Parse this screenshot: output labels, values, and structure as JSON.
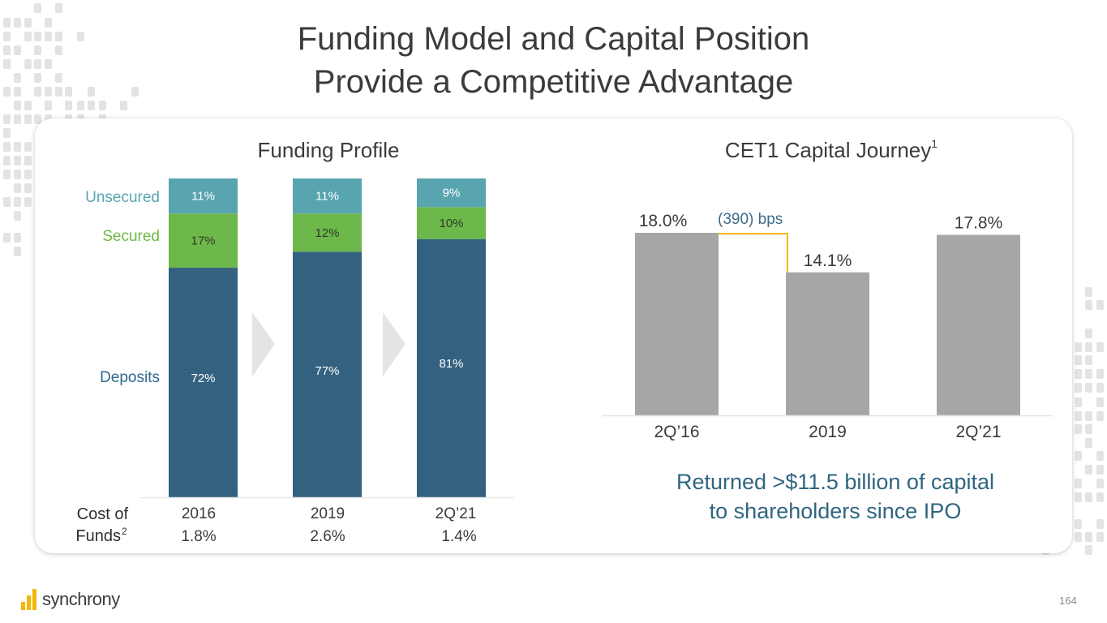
{
  "slide": {
    "title_line1": "Funding Model and Capital Position",
    "title_line2": "Provide a Competitive Advantage",
    "page_number": "164",
    "logo_text": "synchrony",
    "tagline_line1": "Returned >$11.5 billion of capital",
    "tagline_line2": "to shareholders since IPO"
  },
  "colors": {
    "deposits": "#346180",
    "secured": "#6db84a",
    "unsecured": "#58a5b0",
    "cet1_bar": "#a6a6a6",
    "connector": "#f2b705",
    "tagline": "#2f6580",
    "accent_logo": "#f2b705"
  },
  "chart_data": [
    {
      "type": "bar",
      "stacked": true,
      "title": "Funding Profile",
      "categories": [
        "2016",
        "2019",
        "2Q’21"
      ],
      "series": [
        {
          "name": "Deposits",
          "values": [
            72,
            77,
            81
          ],
          "labels": [
            "72%",
            "77%",
            "81%"
          ]
        },
        {
          "name": "Secured",
          "values": [
            17,
            12,
            10
          ],
          "labels": [
            "17%",
            "12%",
            "10%"
          ]
        },
        {
          "name": "Unsecured",
          "values": [
            11,
            11,
            9
          ],
          "labels": [
            "11%",
            "11%",
            "9%"
          ]
        }
      ],
      "ylim": [
        0,
        100
      ],
      "legend": "left",
      "footer": {
        "label_line1": "Cost of",
        "label_line2": "Funds",
        "label_sup": "2",
        "values": [
          "1.8%",
          "2.6%",
          "1.4%"
        ]
      }
    },
    {
      "type": "bar",
      "title": "CET1 Capital Journey",
      "title_sup": "1",
      "categories": [
        "2Q’16",
        "2019",
        "2Q’21"
      ],
      "values": [
        18.0,
        14.1,
        17.8
      ],
      "labels": [
        "18.0%",
        "14.1%",
        "17.8%"
      ],
      "ylim": [
        0,
        18.0
      ],
      "annotation": "(390) bps"
    }
  ]
}
